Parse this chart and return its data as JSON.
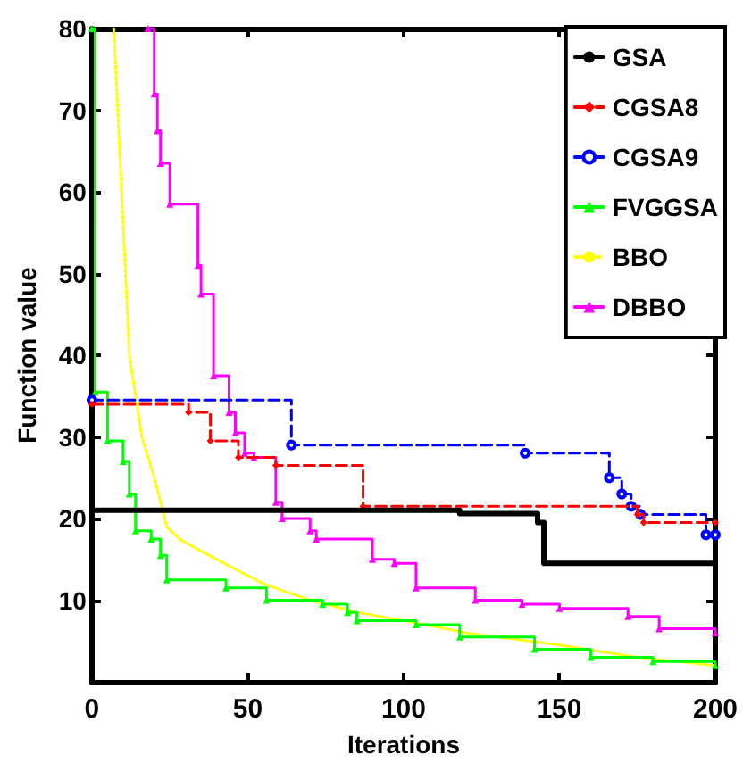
{
  "chart_data": {
    "type": "step",
    "xlabel": "Iterations",
    "ylabel": "Function value",
    "xlim": [
      0,
      200
    ],
    "xticks": [
      0,
      50,
      100,
      150,
      200
    ],
    "ylim": [
      0,
      80
    ],
    "yticks": [
      10,
      20,
      30,
      40,
      50,
      60,
      70,
      80
    ],
    "grid": false,
    "legend": "top right",
    "series": [
      {
        "name": "GSA",
        "color": "#000000",
        "marker": "none",
        "line_style": "solid",
        "x": [
          0,
          118,
          143,
          145,
          200
        ],
        "values": [
          21,
          20.6,
          19.5,
          14.5,
          14.5
        ]
      },
      {
        "name": "CGSA8",
        "color": "#ff0000",
        "marker": "diamond",
        "line_style": "dashed",
        "x": [
          0,
          31,
          38,
          47,
          59,
          87,
          175,
          177,
          200
        ],
        "values": [
          34,
          33,
          29.5,
          27.5,
          26.5,
          21.5,
          20.5,
          19.5,
          19.5
        ]
      },
      {
        "name": "CGSA9",
        "color": "#0000ff",
        "marker": "circle",
        "line_style": "dashed",
        "x": [
          0,
          64,
          139,
          166,
          170,
          173,
          176,
          197,
          200
        ],
        "values": [
          34.5,
          29,
          28,
          25,
          23,
          21.5,
          20.5,
          18,
          18
        ]
      },
      {
        "name": "FVGGSA",
        "color": "#00ff00",
        "marker": "triangle",
        "line_style": "solid",
        "x": [
          0,
          1,
          5,
          10,
          12,
          14,
          19,
          22,
          24,
          43,
          56,
          74,
          82,
          85,
          104,
          118,
          142,
          160,
          180,
          200
        ],
        "values": [
          80,
          35.5,
          29.5,
          27,
          23,
          18.5,
          17.5,
          15.5,
          12.5,
          11.5,
          10,
          9.5,
          8.5,
          7.5,
          7,
          5.5,
          4,
          3,
          2.5,
          2
        ]
      },
      {
        "name": "BBO",
        "type": "line",
        "color": "#ffff00",
        "marker": "none",
        "line_style": "dotted",
        "x": [
          7,
          12,
          16,
          20,
          24,
          28,
          35,
          45,
          55,
          70,
          85,
          100,
          120,
          150,
          175,
          200
        ],
        "values": [
          80,
          40,
          30,
          25,
          19,
          17.5,
          16,
          14,
          12,
          10,
          8.5,
          7.5,
          6,
          4.5,
          3,
          2
        ]
      },
      {
        "name": "DBBO",
        "color": "#ff00ff",
        "marker": "triangle",
        "line_style": "solid",
        "x": [
          18,
          20,
          21,
          22,
          25,
          34,
          35,
          39,
          44,
          46,
          49,
          52,
          59,
          61,
          70,
          72,
          90,
          97,
          104,
          123,
          138,
          150,
          172,
          182,
          200
        ],
        "values": [
          80,
          72,
          67.5,
          63.5,
          58.5,
          51,
          47.5,
          37.5,
          33,
          30.5,
          28,
          27.5,
          22,
          20,
          18.5,
          17.5,
          15,
          14.5,
          11.5,
          10,
          9.5,
          9,
          8,
          6.5,
          6
        ]
      }
    ]
  }
}
